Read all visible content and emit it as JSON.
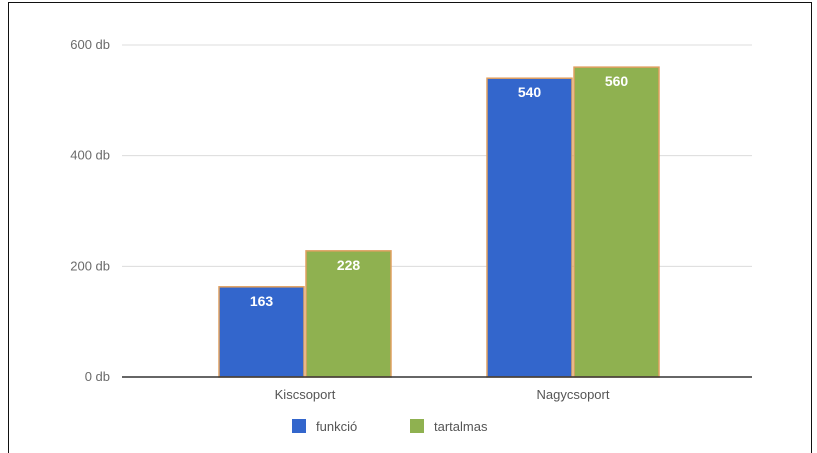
{
  "chart_data": {
    "type": "bar",
    "categories": [
      "Kiscsoport",
      "Nagycsoport"
    ],
    "series": [
      {
        "name": "funkció",
        "values": [
          163,
          540
        ],
        "color": "#3366cc"
      },
      {
        "name": "tartalmas",
        "values": [
          228,
          560
        ],
        "color": "#8fb150"
      }
    ],
    "ylim": [
      0,
      600
    ],
    "yticks": [
      0,
      200,
      400,
      600
    ],
    "ytick_labels": [
      "0 db",
      "200 db",
      "400 db",
      "600 db"
    ],
    "grid": true,
    "legend": "bottom",
    "data_labels": true,
    "bar_outline_color": "#e0a060"
  }
}
